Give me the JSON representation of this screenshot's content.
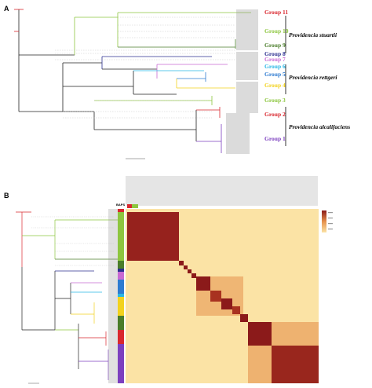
{
  "panels": {
    "a_label": "A",
    "b_label": "B"
  },
  "groups": [
    {
      "name": "Group 11",
      "color": "#d9272e"
    },
    {
      "name": "Group 10",
      "color": "#8dc63f"
    },
    {
      "name": "Group 9",
      "color": "#4a7d2a"
    },
    {
      "name": "Group 8",
      "color": "#2b2f8f"
    },
    {
      "name": "Group 7",
      "color": "#c86ad3"
    },
    {
      "name": "Group 6",
      "color": "#29b7e5"
    },
    {
      "name": "Group 5",
      "color": "#2e7bd1"
    },
    {
      "name": "Group 4",
      "color": "#f2d21e"
    },
    {
      "name": "Group 3",
      "color": "#8cc63e"
    },
    {
      "name": "Group 2",
      "color": "#d9272e"
    },
    {
      "name": "Group 1",
      "color": "#7c3fbf"
    }
  ],
  "species": [
    {
      "name": "Providencia stuartii"
    },
    {
      "name": "Providencia rettgeri"
    },
    {
      "name": "Providencia alcalifaciens"
    }
  ],
  "heatmap": {
    "legend_title": "BAPS"
  },
  "colors": {
    "heat_low": "#fbe3a5",
    "heat_mid": "#e6914c",
    "heat_high": "#8b1a1a",
    "tree_line": "#222222"
  }
}
